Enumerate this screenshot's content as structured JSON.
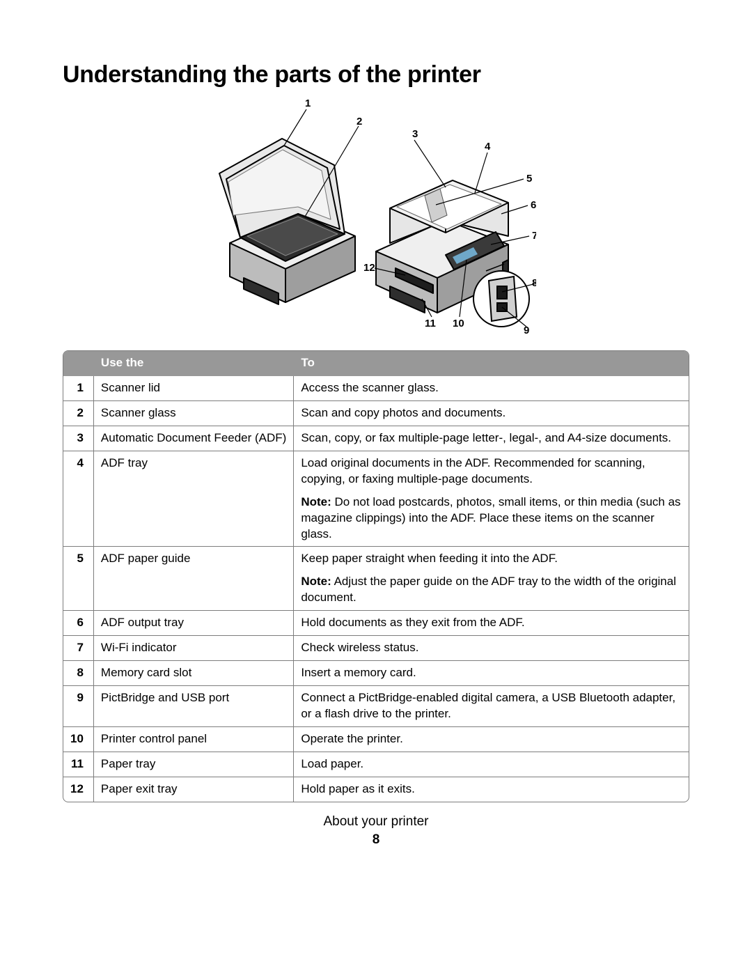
{
  "heading": "Understanding the parts of the printer",
  "footer_section": "About your printer",
  "page_number": "8",
  "table": {
    "header_use": "Use the",
    "header_to": "To",
    "rows": [
      {
        "n": "1",
        "use": "Scanner lid",
        "to": [
          {
            "text": "Access the scanner glass."
          }
        ]
      },
      {
        "n": "2",
        "use": "Scanner glass",
        "to": [
          {
            "text": "Scan and copy photos and documents."
          }
        ]
      },
      {
        "n": "3",
        "use": "Automatic Document Feeder (ADF)",
        "to": [
          {
            "text": "Scan, copy, or fax multiple-page letter-, legal-, and A4-size documents."
          }
        ]
      },
      {
        "n": "4",
        "use": "ADF tray",
        "to": [
          {
            "text": "Load original documents in the ADF. Recommended for scanning, copying, or faxing multiple-page documents."
          },
          {
            "note": "Note:",
            "text": " Do not load postcards, photos, small items, or thin media (such as magazine clippings) into the ADF. Place these items on the scanner glass."
          }
        ]
      },
      {
        "n": "5",
        "use": "ADF paper guide",
        "to": [
          {
            "text": "Keep paper straight when feeding it into the ADF."
          },
          {
            "note": "Note:",
            "text": " Adjust the paper guide on the ADF tray to the width of the original document."
          }
        ]
      },
      {
        "n": "6",
        "use": "ADF output tray",
        "to": [
          {
            "text": "Hold documents as they exit from the ADF."
          }
        ]
      },
      {
        "n": "7",
        "use": "Wi-Fi indicator",
        "to": [
          {
            "text": "Check wireless status."
          }
        ]
      },
      {
        "n": "8",
        "use": "Memory card slot",
        "to": [
          {
            "text": "Insert a memory card."
          }
        ]
      },
      {
        "n": "9",
        "use": "PictBridge and USB port",
        "to": [
          {
            "text": "Connect a PictBridge-enabled digital camera, a USB Bluetooth adapter, or a flash drive to the printer."
          }
        ]
      },
      {
        "n": "10",
        "use": "Printer control panel",
        "to": [
          {
            "text": "Operate the printer."
          }
        ]
      },
      {
        "n": "11",
        "use": "Paper tray",
        "to": [
          {
            "text": "Load paper."
          }
        ]
      },
      {
        "n": "12",
        "use": "Paper exit tray",
        "to": [
          {
            "text": "Hold paper as it exits."
          }
        ]
      }
    ]
  },
  "diagram": {
    "callouts": [
      "1",
      "2",
      "3",
      "4",
      "5",
      "6",
      "7",
      "8",
      "9",
      "10",
      "11",
      "12"
    ],
    "stroke": "#000000",
    "fill_light": "#ffffff",
    "fill_mid": "#cfcfcf",
    "fill_dark": "#3a3a3a",
    "fill_glass": "#2b2b2b"
  }
}
